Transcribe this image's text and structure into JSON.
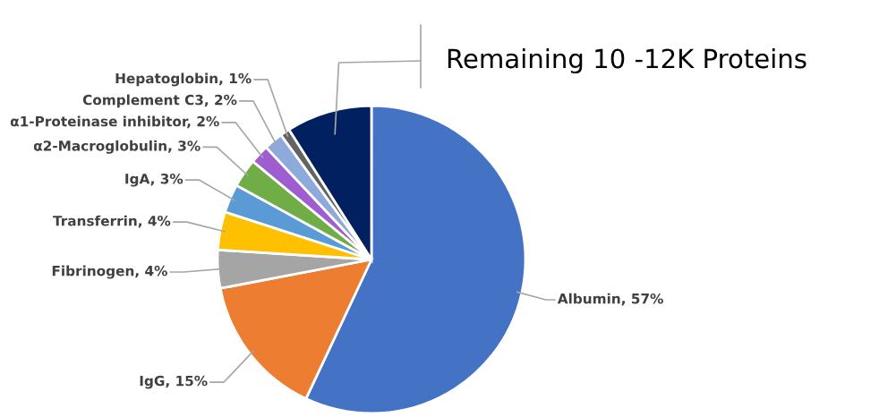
{
  "chart_data": {
    "type": "pie",
    "categories": [
      "Albumin",
      "IgG",
      "Fibrinogen",
      "Transferrin",
      "IgA",
      "α2-Macroglobulin",
      "α1-Proteinase inhibitor",
      "Complement C3",
      "Hepatoglobin",
      "Remaining 10 -12K Proteins"
    ],
    "values": [
      57,
      15,
      4,
      4,
      3,
      3,
      2,
      2,
      1,
      9
    ],
    "value_labels": [
      "57%",
      "15%",
      "4%",
      "4%",
      "3%",
      "3%",
      "2%",
      "2%",
      "1%",
      null
    ],
    "colors": [
      "#4472c4",
      "#ed7d31",
      "#a5a5a5",
      "#ffc000",
      "#5b9bd5",
      "#70ad47",
      "#9e5ecf",
      "#8eaadb",
      "#636363",
      "#002060"
    ],
    "legend": false
  }
}
